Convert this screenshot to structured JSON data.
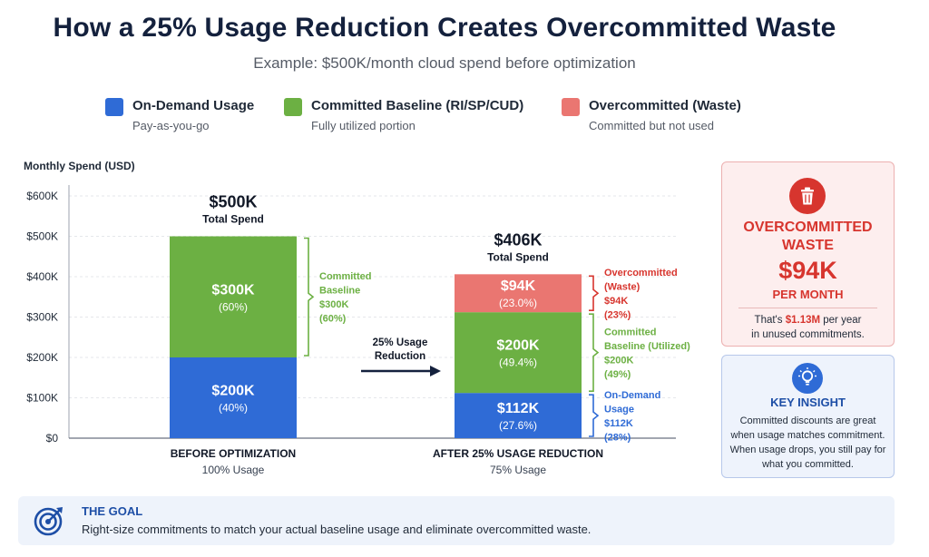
{
  "title": "How a 25% Usage Reduction Creates Overcommitted Waste",
  "subtitle": "Example: $500K/month cloud spend before optimization",
  "colors": {
    "on_demand": "#2f6bd6",
    "committed": "#6cb043",
    "waste": "#ea7671",
    "accent_red": "#d7352e",
    "accent_blue": "#1d4ea6",
    "navy": "#14213d"
  },
  "legend": [
    {
      "name": "On-Demand Usage",
      "desc": "Pay-as-you-go",
      "color": "#2f6bd6"
    },
    {
      "name": "Committed Baseline (RI/SP/CUD)",
      "desc": "Fully utilized portion",
      "color": "#6cb043"
    },
    {
      "name": "Overcommitted (Waste)",
      "desc": "Committed but not used",
      "color": "#ea7671"
    }
  ],
  "chart_data": {
    "type": "bar",
    "stacked": true,
    "ylabel": "Monthly Spend (USD)",
    "ylim": [
      0,
      600
    ],
    "y_ticks": [
      {
        "value": 0,
        "label": "$0"
      },
      {
        "value": 100,
        "label": "$100K"
      },
      {
        "value": 200,
        "label": "$200K"
      },
      {
        "value": 300,
        "label": "$300K"
      },
      {
        "value": 400,
        "label": "$400K"
      },
      {
        "value": 500,
        "label": "$500K"
      },
      {
        "value": 600,
        "label": "$600K"
      }
    ],
    "categories": [
      "BEFORE OPTIMIZATION",
      "AFTER 25% USAGE REDUCTION"
    ],
    "category_sublabels": [
      "100% Usage",
      "75% Usage"
    ],
    "totals": [
      {
        "value_label": "$500K",
        "caption": "Total Spend"
      },
      {
        "value_label": "$406K",
        "caption": "Total Spend"
      }
    ],
    "series": [
      {
        "name": "On-Demand Usage",
        "color": "#2f6bd6",
        "values": [
          200,
          112
        ],
        "labels": [
          "$200K",
          "$112K"
        ],
        "pct_labels": [
          "(40%)",
          "(27.6%)"
        ]
      },
      {
        "name": "Committed Baseline (RI/SP/CUD)",
        "color": "#6cb043",
        "values": [
          300,
          200
        ],
        "labels": [
          "$300K",
          "$200K"
        ],
        "pct_labels": [
          "(60%)",
          "(49.4%)"
        ]
      },
      {
        "name": "Overcommitted (Waste)",
        "color": "#ea7671",
        "values": [
          0,
          94
        ],
        "labels": [
          "",
          "$94K"
        ],
        "pct_labels": [
          "",
          "(23.0%)"
        ]
      }
    ],
    "annotations": [
      {
        "bar": 0,
        "from": 200,
        "to": 500,
        "color": "#6cb043",
        "lines": [
          "Committed",
          "Baseline",
          "$300K",
          "(60%)"
        ]
      },
      {
        "bar": 1,
        "from": 312,
        "to": 406,
        "color": "#d7352e",
        "lines": [
          "Overcommitted",
          "(Waste)",
          "$94K",
          "(23%)"
        ]
      },
      {
        "bar": 1,
        "from": 112,
        "to": 312,
        "color": "#6cb043",
        "lines": [
          "Committed",
          "Baseline (Utilized)",
          "$200K",
          "(49%)"
        ]
      },
      {
        "bar": 1,
        "from": 0,
        "to": 112,
        "color": "#2f6bd6",
        "lines": [
          "On-Demand",
          "Usage",
          "$112K",
          "(28%)"
        ]
      }
    ],
    "arrow_lines": [
      "25% Usage",
      "Reduction"
    ]
  },
  "waste_card": {
    "heading_lines": [
      "OVERCOMMITTED",
      "WASTE"
    ],
    "amount": "$94K",
    "per": "PER MONTH",
    "note_prefix": "That's ",
    "note_highlight": "$1.13M",
    "note_suffix": " per year",
    "note_line2": "in unused commitments."
  },
  "insight_card": {
    "heading": "KEY INSIGHT",
    "text": "Committed discounts are great when usage matches commitment. When usage drops, you still pay for what you committed."
  },
  "goal": {
    "heading": "THE GOAL",
    "text": "Right-size commitments to match your actual baseline usage and eliminate overcommitted waste."
  }
}
